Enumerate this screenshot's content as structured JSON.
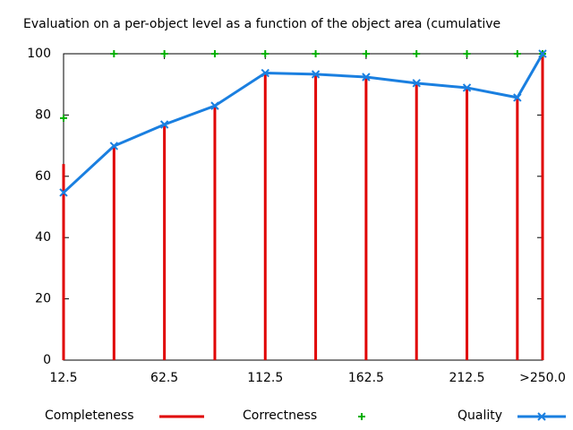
{
  "chart_data": {
    "type": "line",
    "title": "Evaluation on a per-object level as a function of the object area (cumulative",
    "x": [
      12.5,
      37.5,
      62.5,
      87.5,
      112.5,
      137.5,
      162.5,
      187.5,
      212.5,
      237.5,
      250
    ],
    "xlim": [
      12.5,
      250
    ],
    "xticks": [
      12.5,
      62.5,
      112.5,
      162.5,
      212.5,
      {
        "value": 250,
        "label": ">250.0"
      }
    ],
    "ylim": [
      0,
      100
    ],
    "yticks": [
      0,
      20,
      40,
      60,
      80,
      100
    ],
    "series": [
      {
        "name": "Completeness",
        "color": "#e00000",
        "style": "impulses",
        "values": [
          64,
          70,
          77,
          83,
          93.5,
          93,
          92.5,
          90.5,
          89,
          86,
          100
        ]
      },
      {
        "name": "Correctness",
        "color": "#00b000",
        "style": "points",
        "values": [
          79,
          100,
          100,
          100,
          100,
          100,
          100,
          100,
          100,
          100,
          100
        ]
      },
      {
        "name": "Quality",
        "color": "#1a7fe0",
        "style": "linespoints",
        "values": [
          54.7,
          69.9,
          76.9,
          83,
          93.7,
          93.3,
          92.4,
          90.4,
          88.9,
          85.7,
          100
        ]
      }
    ]
  }
}
